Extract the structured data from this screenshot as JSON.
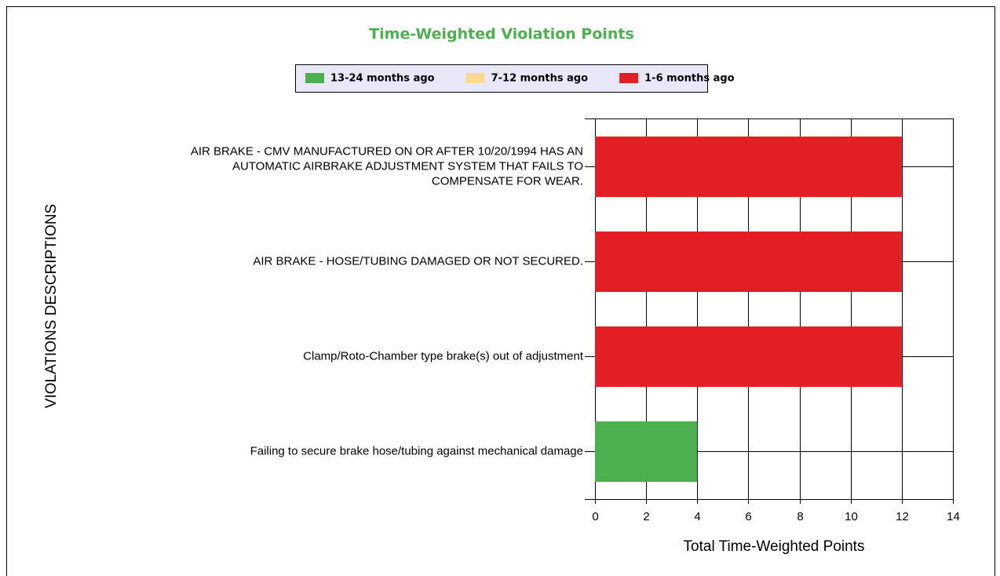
{
  "chart_data": {
    "type": "stacked-barh",
    "title": "Time-Weighted Violation Points",
    "categories": [
      "AIR BRAKE - CMV MANUFACTURED ON OR AFTER 10/20/1994 HAS AN\nAUTOMATIC AIRBRAKE ADJUSTMENT SYSTEM THAT FAILS TO\nCOMPENSATE FOR WEAR.",
      "AIR BRAKE - HOSE/TUBING DAMAGED OR NOT SECURED.",
      "Clamp/Roto-Chamber type brake(s) out of adjustment",
      "Failing to secure brake hose/tubing against mechanical damage"
    ],
    "series": [
      {
        "name": "13-24 months ago",
        "color": "#4caf50",
        "values": [
          0,
          0,
          0,
          4
        ]
      },
      {
        "name": "7-12 months ago",
        "color": "#ffd98e",
        "values": [
          0,
          0,
          0,
          0
        ]
      },
      {
        "name": "1-6 months ago",
        "color": "#e31e24",
        "values": [
          12,
          12,
          12,
          0
        ]
      }
    ],
    "xlim": [
      0,
      14
    ],
    "xticks": [
      0,
      2,
      4,
      6,
      8,
      10,
      12,
      14
    ],
    "xlabel": "Total Time-Weighted Points",
    "ylabel": "VIOLATIONS DESCRIPTIONS",
    "grid": true
  }
}
